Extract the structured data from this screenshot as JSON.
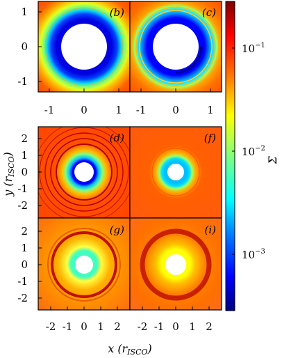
{
  "figure": {
    "panels": [
      {
        "id": "b",
        "label": "(b)",
        "label_parts": [
          "(",
          "b",
          ")"
        ]
      },
      {
        "id": "c",
        "label": "(c)",
        "label_parts": [
          "(",
          "c",
          ")"
        ]
      },
      {
        "id": "d",
        "label": "(d)",
        "label_parts": [
          "(",
          "d",
          ")"
        ]
      },
      {
        "id": "f",
        "label": "(f)",
        "label_parts": [
          "(",
          "f",
          ")"
        ]
      },
      {
        "id": "g",
        "label": "(g)",
        "label_parts": [
          "(",
          "g",
          ")"
        ]
      },
      {
        "id": "i",
        "label": "(i)",
        "label_parts": [
          "(",
          "i",
          ")"
        ]
      }
    ],
    "top_row": {
      "x_ticks": [
        "-1",
        "0",
        "1"
      ],
      "y_ticks": [
        "1",
        "0",
        "-1"
      ],
      "xlim": [
        -1.35,
        1.35
      ],
      "ylim": [
        -1.35,
        1.35
      ]
    },
    "bottom_block": {
      "x_ticks": [
        "-2",
        "-1",
        "0",
        "1",
        "2"
      ],
      "y_ticks_upper": [
        "2",
        "1",
        "0",
        "-1",
        "-2"
      ],
      "y_ticks_lower": [
        "2",
        "1",
        "0",
        "-1",
        "-2"
      ],
      "xlim": [
        -2.75,
        2.75
      ],
      "ylim": [
        -2.75,
        2.75
      ]
    },
    "xlabel": "x (r",
    "xlabel_sub": "ISCO",
    "xlabel_end": ")",
    "ylabel": "y (r",
    "ylabel_sub": "ISCO",
    "ylabel_end": ")",
    "colorbar": {
      "label": "Σ",
      "scale": "log",
      "range": [
        0.0003,
        0.3
      ],
      "tick_labels": [
        {
          "base": "10",
          "exp": "−1",
          "value": 0.1
        },
        {
          "base": "10",
          "exp": "−2",
          "value": 0.01
        },
        {
          "base": "10",
          "exp": "−3",
          "value": 0.001
        }
      ],
      "colormap": [
        "#00007f",
        "#0000ff",
        "#0080ff",
        "#00ffff",
        "#80ff80",
        "#ffff00",
        "#ff8000",
        "#ff0000",
        "#7f0000"
      ]
    }
  }
}
